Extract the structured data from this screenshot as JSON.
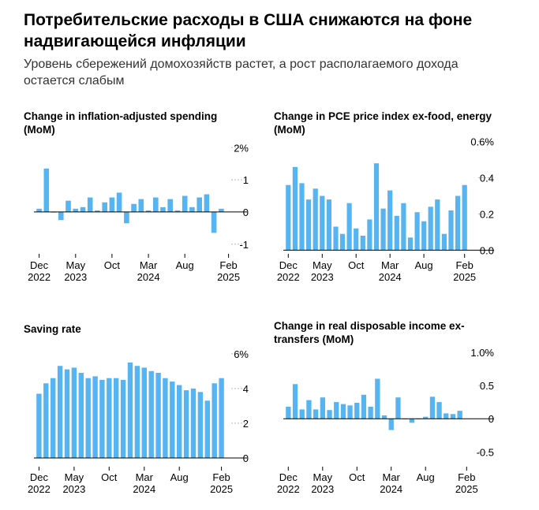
{
  "header": {
    "title": "Потребительские расходы в США снижаются на фоне надвигающейся инфляции",
    "subtitle": "Уровень сбережений домохозяйств растет, а рост располагаемого дохода остается слабым"
  },
  "theme": {
    "bar_color": "#56b4f0",
    "axis_color": "#000000",
    "grid_color": "#b8b8b8"
  },
  "chart_data": [
    {
      "type": "bar",
      "title": "Change in inflation-adjusted spending (MoM)",
      "ylim": [
        -1.3,
        2.3
      ],
      "yticks": [
        2,
        1,
        0,
        -1
      ],
      "ytick_labels": [
        "2%",
        "1",
        "0",
        "-1"
      ],
      "xticks": [
        {
          "index": 0,
          "lines": [
            "Dec",
            "2022"
          ]
        },
        {
          "index": 5,
          "lines": [
            "May",
            "2023"
          ]
        },
        {
          "index": 10,
          "lines": [
            "Oct",
            ""
          ]
        },
        {
          "index": 15,
          "lines": [
            "Mar",
            "2024"
          ]
        },
        {
          "index": 20,
          "lines": [
            "Aug",
            ""
          ]
        },
        {
          "index": 26,
          "lines": [
            "Feb",
            "2025"
          ]
        }
      ],
      "values": [
        0.1,
        1.35,
        0.0,
        -0.25,
        0.35,
        0.1,
        0.15,
        0.45,
        0.05,
        0.3,
        0.45,
        0.6,
        -0.35,
        0.25,
        0.4,
        0.05,
        0.45,
        0.15,
        0.4,
        0.05,
        0.5,
        0.15,
        0.45,
        0.55,
        -0.65,
        0.1
      ]
    },
    {
      "type": "bar",
      "title": "Change in PCE price index ex-food, energy (MoM)",
      "ylim": [
        -0.02,
        0.62
      ],
      "yticks": [
        0.6,
        0.4,
        0.2,
        0.0
      ],
      "ytick_labels": [
        "0.6%",
        "0.4",
        "0.2",
        "0.0"
      ],
      "xticks": [
        {
          "index": 0,
          "lines": [
            "Dec",
            "2022"
          ]
        },
        {
          "index": 5,
          "lines": [
            "May",
            "2023"
          ]
        },
        {
          "index": 10,
          "lines": [
            "Oct",
            ""
          ]
        },
        {
          "index": 15,
          "lines": [
            "Mar",
            "2024"
          ]
        },
        {
          "index": 20,
          "lines": [
            "Aug",
            ""
          ]
        },
        {
          "index": 26,
          "lines": [
            "Feb",
            "2025"
          ]
        }
      ],
      "values": [
        0.36,
        0.46,
        0.37,
        0.28,
        0.34,
        0.3,
        0.28,
        0.13,
        0.09,
        0.26,
        0.12,
        0.08,
        0.17,
        0.48,
        0.23,
        0.33,
        0.19,
        0.26,
        0.07,
        0.21,
        0.16,
        0.24,
        0.28,
        0.09,
        0.22,
        0.3,
        0.36
      ]
    },
    {
      "type": "bar",
      "title": "Saving rate",
      "ylim": [
        -0.5,
        6.4
      ],
      "yticks": [
        6,
        4,
        2,
        0
      ],
      "ytick_labels": [
        "6%",
        "4",
        "2",
        "0"
      ],
      "xticks": [
        {
          "index": 0,
          "lines": [
            "Dec",
            "2022"
          ]
        },
        {
          "index": 5,
          "lines": [
            "May",
            "2023"
          ]
        },
        {
          "index": 10,
          "lines": [
            "Oct",
            ""
          ]
        },
        {
          "index": 15,
          "lines": [
            "Mar",
            "2024"
          ]
        },
        {
          "index": 20,
          "lines": [
            "Aug",
            ""
          ]
        },
        {
          "index": 26,
          "lines": [
            "Feb",
            "2025"
          ]
        }
      ],
      "values": [
        3.7,
        4.3,
        4.6,
        5.3,
        5.1,
        5.2,
        4.9,
        4.6,
        4.7,
        4.5,
        4.6,
        4.6,
        4.5,
        5.5,
        5.3,
        5.2,
        5.0,
        4.9,
        4.6,
        4.4,
        4.2,
        3.9,
        4.0,
        3.8,
        3.3,
        4.3,
        4.6
      ]
    },
    {
      "type": "bar",
      "title": "Change in real disposable income ex-transfers (MoM)",
      "ylim": [
        -0.72,
        1.08
      ],
      "yticks": [
        1.0,
        0.5,
        0,
        -0.5
      ],
      "ytick_labels": [
        "1.0%",
        "0.5",
        "0",
        "-0.5"
      ],
      "xticks": [
        {
          "index": 0,
          "lines": [
            "Dec",
            "2022"
          ]
        },
        {
          "index": 5,
          "lines": [
            "May",
            "2023"
          ]
        },
        {
          "index": 10,
          "lines": [
            "Oct",
            ""
          ]
        },
        {
          "index": 15,
          "lines": [
            "Mar",
            "2024"
          ]
        },
        {
          "index": 20,
          "lines": [
            "Aug",
            ""
          ]
        },
        {
          "index": 26,
          "lines": [
            "Feb",
            "2025"
          ]
        }
      ],
      "values": [
        0.18,
        0.52,
        0.14,
        0.28,
        0.14,
        0.32,
        0.13,
        0.25,
        0.22,
        0.2,
        0.24,
        0.36,
        0.18,
        0.6,
        0.05,
        -0.17,
        0.32,
        0.0,
        -0.06,
        0.0,
        0.03,
        0.33,
        0.25,
        0.08,
        0.07,
        0.12
      ]
    }
  ]
}
